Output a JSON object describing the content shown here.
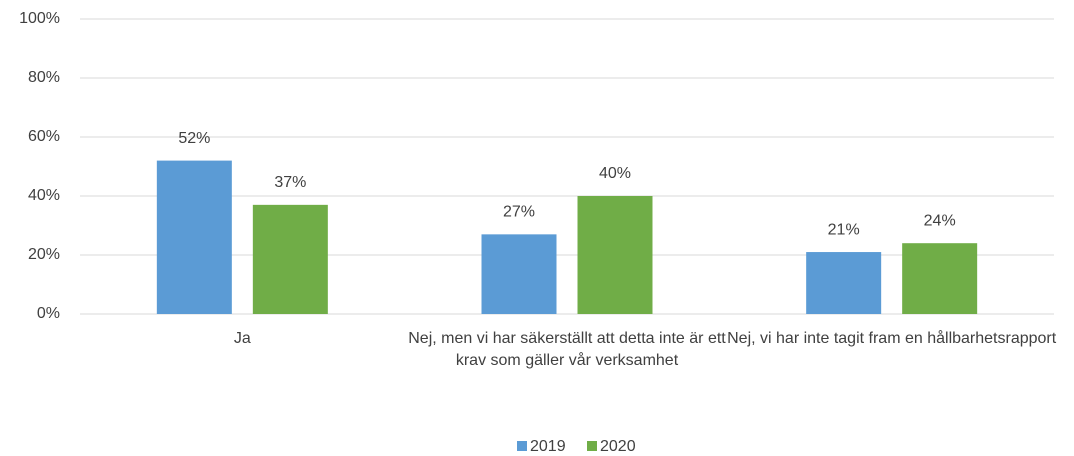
{
  "chart_data": {
    "type": "bar",
    "categories": [
      "Ja",
      "Nej, men vi har säkerställt att detta inte är ett krav som gäller vår verksamhet",
      "Nej, vi har inte tagit fram en hållbarhetsrapport"
    ],
    "series": [
      {
        "name": "2019",
        "color": "#5b9bd5",
        "values": [
          52,
          27,
          21
        ],
        "value_labels": [
          "52%",
          "27%",
          "21%"
        ]
      },
      {
        "name": "2020",
        "color": "#70ad47",
        "values": [
          37,
          40,
          24
        ],
        "value_labels": [
          "37%",
          "40%",
          "24%"
        ]
      }
    ],
    "ylim": [
      0,
      100
    ],
    "yticks": [
      {
        "value": 0,
        "label": "0%"
      },
      {
        "value": 20,
        "label": "20%"
      },
      {
        "value": 40,
        "label": "40%"
      },
      {
        "value": 60,
        "label": "60%"
      },
      {
        "value": 80,
        "label": "80%"
      },
      {
        "value": 100,
        "label": "100%"
      }
    ],
    "grid": true,
    "legend": "bottom"
  }
}
